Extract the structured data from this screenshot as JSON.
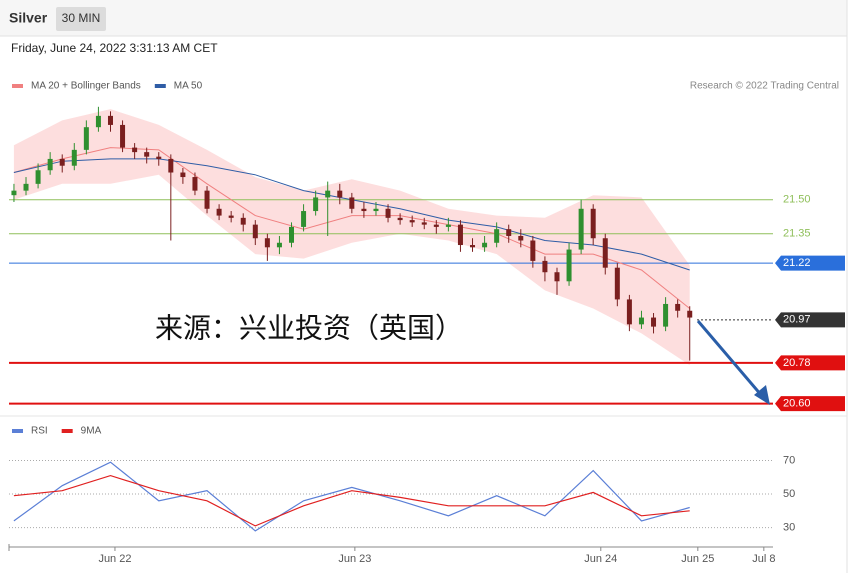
{
  "header": {
    "symbol": "Silver",
    "interval": "30 MIN",
    "timestamp": "Friday, June 24, 2022 3:31:13 AM CET"
  },
  "chart_data": [
    {
      "type": "candlestick",
      "credit": "Research © 2022 Trading Central",
      "annotation": "来源：兴业投资（英国）",
      "up_color": "#2f8f2f",
      "down_color": "#7a1f1f",
      "xlim": [
        -0.41,
        62.9
      ],
      "ylim": [
        20.55,
        21.94
      ],
      "candles": {
        "open": [
          21.52,
          21.54,
          21.57,
          21.63,
          21.68,
          21.65,
          21.72,
          21.82,
          21.87,
          21.83,
          21.73,
          21.71,
          21.69,
          21.68,
          21.62,
          21.6,
          21.54,
          21.46,
          21.43,
          21.42,
          21.39,
          21.33,
          21.29,
          21.31,
          21.38,
          21.45,
          21.51,
          21.54,
          21.51,
          21.46,
          21.45,
          21.46,
          21.42,
          21.41,
          21.4,
          21.39,
          21.38,
          21.39,
          21.3,
          21.29,
          21.31,
          21.37,
          21.34,
          21.32,
          21.23,
          21.18,
          21.14,
          21.28,
          21.46,
          21.33,
          21.2,
          21.06,
          20.95,
          20.98,
          20.94,
          21.04,
          21.01
        ],
        "high": [
          21.57,
          21.6,
          21.66,
          21.71,
          21.7,
          21.75,
          21.85,
          21.91,
          21.89,
          21.85,
          21.75,
          21.73,
          21.71,
          21.7,
          21.64,
          21.62,
          21.56,
          21.48,
          21.45,
          21.44,
          21.41,
          21.35,
          21.34,
          21.4,
          21.48,
          21.54,
          21.58,
          21.57,
          21.53,
          21.49,
          21.49,
          21.48,
          21.44,
          21.43,
          21.42,
          21.41,
          21.42,
          21.41,
          21.33,
          21.34,
          21.4,
          21.39,
          21.37,
          21.34,
          21.25,
          21.2,
          21.31,
          21.5,
          21.48,
          21.35,
          21.22,
          21.08,
          21.01,
          21.0,
          21.07,
          21.06,
          21.03
        ],
        "low": [
          21.49,
          21.52,
          21.55,
          21.61,
          21.62,
          21.63,
          21.7,
          21.8,
          21.8,
          21.71,
          21.68,
          21.66,
          21.65,
          21.32,
          21.57,
          21.52,
          21.44,
          21.41,
          21.4,
          21.36,
          21.3,
          21.23,
          21.26,
          21.29,
          21.36,
          21.43,
          21.34,
          21.48,
          21.44,
          21.42,
          21.43,
          21.4,
          21.39,
          21.38,
          21.37,
          21.35,
          21.36,
          21.27,
          21.27,
          21.27,
          21.29,
          21.31,
          21.29,
          21.2,
          21.14,
          21.08,
          21.12,
          21.26,
          21.3,
          21.17,
          21.03,
          20.92,
          20.93,
          20.91,
          20.92,
          20.98,
          20.79
        ],
        "close": [
          21.54,
          21.57,
          21.63,
          21.68,
          21.65,
          21.72,
          21.82,
          21.87,
          21.83,
          21.73,
          21.71,
          21.69,
          21.68,
          21.62,
          21.6,
          21.54,
          21.46,
          21.43,
          21.42,
          21.39,
          21.33,
          21.29,
          21.31,
          21.38,
          21.45,
          21.51,
          21.54,
          21.51,
          21.46,
          21.45,
          21.46,
          21.42,
          21.41,
          21.4,
          21.39,
          21.38,
          21.39,
          21.3,
          21.29,
          21.31,
          21.37,
          21.34,
          21.32,
          21.23,
          21.18,
          21.14,
          21.28,
          21.46,
          21.33,
          21.2,
          21.06,
          20.95,
          20.98,
          20.94,
          21.04,
          21.01,
          20.98
        ]
      },
      "series": [
        {
          "name": "MA 20 + Bollinger Bands",
          "color": "#f08080",
          "band_color": "#fcd3d3",
          "x": [
            0,
            4,
            8,
            12,
            16,
            20,
            24,
            28,
            32,
            36,
            40,
            44,
            48,
            52,
            56
          ],
          "values": [
            21.62,
            21.68,
            21.73,
            21.72,
            21.57,
            21.43,
            21.37,
            21.43,
            21.43,
            21.39,
            21.35,
            21.26,
            21.26,
            21.19,
            21.02
          ],
          "upper": [
            21.74,
            21.85,
            21.9,
            21.83,
            21.72,
            21.6,
            21.54,
            21.59,
            21.54,
            21.46,
            21.43,
            21.42,
            21.52,
            21.51,
            21.21
          ],
          "lower": [
            21.5,
            21.57,
            21.57,
            21.61,
            21.43,
            21.26,
            21.24,
            21.31,
            21.35,
            21.32,
            21.26,
            21.1,
            21.02,
            20.91,
            20.77
          ]
        },
        {
          "name": "MA 50",
          "color": "#2f5da6",
          "x": [
            0,
            4,
            8,
            12,
            16,
            20,
            24,
            28,
            32,
            36,
            40,
            44,
            48,
            52,
            56
          ],
          "values": [
            21.62,
            21.67,
            21.68,
            21.68,
            21.65,
            21.61,
            21.54,
            21.5,
            21.46,
            21.41,
            21.38,
            21.32,
            21.3,
            21.26,
            21.19
          ]
        }
      ],
      "levels": [
        {
          "value": 21.5,
          "label": "21.50",
          "color": "#8fbf5a",
          "line": "solid",
          "boxed": false
        },
        {
          "value": 21.35,
          "label": "21.35",
          "color": "#8fbf5a",
          "line": "solid",
          "boxed": false
        },
        {
          "value": 21.22,
          "label": "21.22",
          "color": "#2a6fdb",
          "line": "solid",
          "boxed": true
        },
        {
          "value": 20.97,
          "label": "20.97",
          "color": "#333333",
          "line": "dotted",
          "boxed": true
        },
        {
          "value": 20.78,
          "label": "20.78",
          "color": "#e01010",
          "line": "thick",
          "boxed": true
        },
        {
          "value": 20.6,
          "label": "20.60",
          "color": "#e01010",
          "line": "thick",
          "boxed": true
        }
      ]
    },
    {
      "type": "line",
      "xlim": [
        -0.41,
        62.9
      ],
      "ylim": [
        19.6,
        93.6
      ],
      "yticks": [
        30,
        50,
        70
      ],
      "grid": true,
      "xticks": [
        {
          "value": 8.37,
          "label": "Jun 22"
        },
        {
          "value": 28.25,
          "label": "Jun 23"
        },
        {
          "value": 48.63,
          "label": "Jun 24"
        },
        {
          "value": 56.67,
          "label": "Jun 25"
        },
        {
          "value": 62.14,
          "label": "Jul 8"
        }
      ],
      "series": [
        {
          "name": "RSI",
          "color": "#5b7fd6",
          "x": [
            0,
            4,
            8,
            12,
            16,
            20,
            24,
            28,
            32,
            36,
            40,
            44,
            48,
            52,
            56
          ],
          "values": [
            34,
            55,
            69,
            46,
            52,
            28,
            46,
            54,
            46,
            37,
            49,
            37,
            64,
            34,
            42
          ]
        },
        {
          "name": "9MA",
          "color": "#e02020",
          "x": [
            0,
            4,
            8,
            12,
            16,
            20,
            24,
            28,
            32,
            36,
            40,
            44,
            48,
            52,
            56
          ],
          "values": [
            49,
            52,
            61,
            52,
            46,
            31,
            43,
            52,
            48,
            43,
            43,
            43,
            51,
            37,
            40
          ]
        }
      ]
    }
  ]
}
